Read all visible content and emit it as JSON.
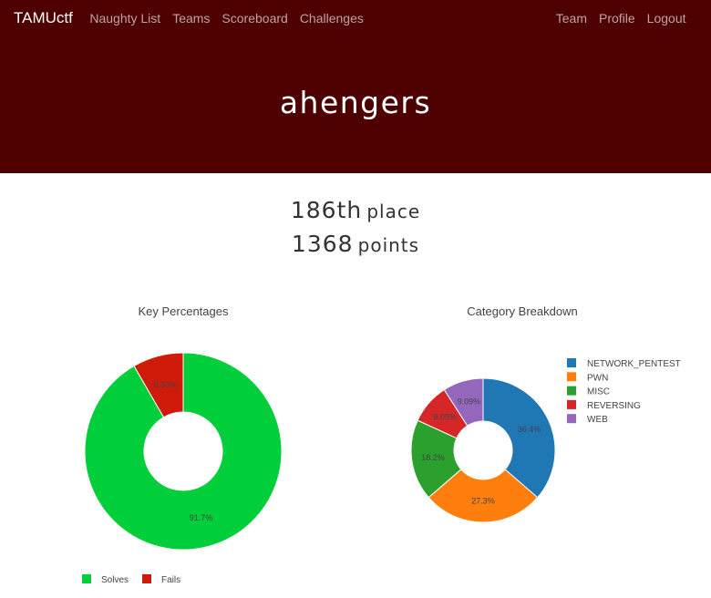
{
  "navbar": {
    "brand": "TAMUctf",
    "left": [
      "Naughty List",
      "Teams",
      "Scoreboard",
      "Challenges"
    ],
    "right": [
      "Team",
      "Profile",
      "Logout"
    ]
  },
  "header": {
    "team_name": "ahengers"
  },
  "stats": {
    "place_value": "186th",
    "place_word": "place",
    "points_value": "1368",
    "points_word": "points"
  },
  "chart_data": [
    {
      "type": "pie",
      "title": "Key Percentages",
      "hole": true,
      "legend_placement": "bottom",
      "labels": [
        "Solves",
        "Fails"
      ],
      "values": [
        91.7,
        8.33
      ],
      "slice_labels": [
        "91.7%",
        "8.33%"
      ],
      "colors": [
        "#00ce3a",
        "#cf1c0a"
      ]
    },
    {
      "type": "pie",
      "title": "Category Breakdown",
      "hole": true,
      "legend_placement": "right",
      "labels": [
        "NETWORK_PENTEST",
        "PWN",
        "MISC",
        "REVERSING",
        "WEB"
      ],
      "values": [
        36.4,
        27.3,
        18.2,
        9.09,
        9.09
      ],
      "slice_labels": [
        "36.4%",
        "27.3%",
        "18.2%",
        "9.09%",
        "9.09%"
      ],
      "colors": [
        "#1f77b4",
        "#ff7f0e",
        "#2ca02c",
        "#d62728",
        "#9467bd"
      ]
    }
  ]
}
